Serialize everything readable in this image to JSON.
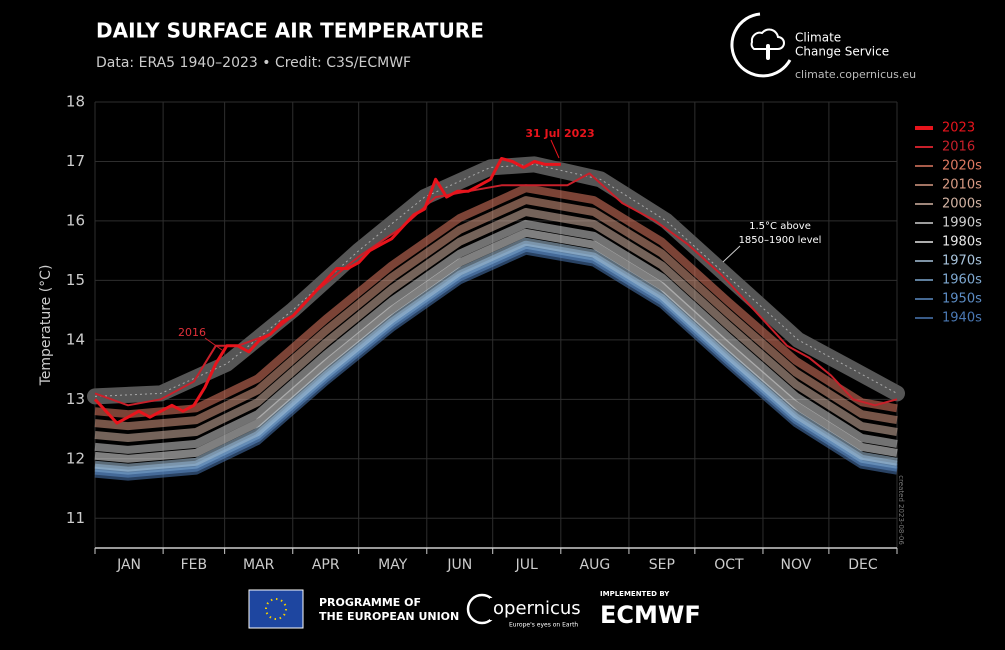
{
  "header": {
    "title": "DAILY SURFACE AIR TEMPERATURE",
    "subtitle": "Data: ERA5 1940–2023 • Credit: C3S/ECMWF",
    "logo_line1": "Climate",
    "logo_line2": "Change Service",
    "url": "climate.copernicus.eu"
  },
  "chart_data": {
    "type": "line",
    "ylabel": "Temperature (°C)",
    "xlim": [
      0,
      365
    ],
    "ylim": [
      10.5,
      18
    ],
    "yticks": [
      11,
      12,
      13,
      14,
      15,
      16,
      17,
      18
    ],
    "xticks": [
      {
        "value": 15.5,
        "label": "JAN"
      },
      {
        "value": 45,
        "label": "FEB"
      },
      {
        "value": 74.5,
        "label": "MAR"
      },
      {
        "value": 105,
        "label": "APR"
      },
      {
        "value": 135.5,
        "label": "MAY"
      },
      {
        "value": 166,
        "label": "JUN"
      },
      {
        "value": 196.5,
        "label": "JUL"
      },
      {
        "value": 227.5,
        "label": "AUG"
      },
      {
        "value": 258,
        "label": "SEP"
      },
      {
        "value": 288.5,
        "label": "OCT"
      },
      {
        "value": 319,
        "label": "NOV"
      },
      {
        "value": 349.5,
        "label": "DEC"
      }
    ],
    "xgrid": [
      0,
      31,
      59,
      90,
      120,
      151,
      181,
      212,
      243,
      273,
      304,
      334,
      365
    ],
    "grid": true,
    "reference": {
      "label1": "1.5°C above",
      "label2": "1850–1900 level",
      "color": "#555555",
      "x": [
        0,
        30,
        60,
        90,
        120,
        150,
        180,
        200,
        230,
        260,
        290,
        320,
        345,
        365
      ],
      "values": [
        13.05,
        13.1,
        13.6,
        14.5,
        15.5,
        16.4,
        16.9,
        16.95,
        16.7,
        16.0,
        15.0,
        14.0,
        13.5,
        13.1
      ]
    },
    "series": [
      {
        "name": "2023",
        "color": "#e8141c",
        "x": [
          0,
          5,
          10,
          15,
          20,
          25,
          30,
          35,
          40,
          45,
          50,
          55,
          60,
          65,
          70,
          75,
          80,
          85,
          90,
          95,
          100,
          105,
          110,
          115,
          120,
          125,
          130,
          135,
          140,
          145,
          150,
          155,
          160,
          165,
          170,
          175,
          180,
          185,
          190,
          195,
          200,
          205,
          212
        ],
        "values": [
          13.0,
          12.8,
          12.6,
          12.7,
          12.8,
          12.7,
          12.8,
          12.9,
          12.8,
          12.9,
          13.2,
          13.6,
          13.9,
          13.9,
          13.8,
          14.0,
          14.1,
          14.3,
          14.4,
          14.6,
          14.8,
          15.0,
          15.2,
          15.2,
          15.3,
          15.5,
          15.6,
          15.7,
          15.9,
          16.1,
          16.2,
          16.7,
          16.4,
          16.5,
          16.5,
          16.6,
          16.7,
          17.05,
          17.0,
          16.9,
          17.0,
          16.95,
          16.95
        ]
      },
      {
        "name": "2016",
        "color": "#c8202a",
        "x": [
          0,
          15,
          30,
          45,
          55,
          65,
          80,
          90,
          100,
          120,
          140,
          155,
          170,
          185,
          200,
          215,
          225,
          240,
          255,
          270,
          285,
          300,
          315,
          325,
          335,
          345,
          355,
          365
        ],
        "values": [
          13.1,
          12.9,
          13.0,
          13.3,
          13.9,
          13.9,
          14.1,
          14.4,
          14.8,
          15.4,
          15.9,
          16.4,
          16.5,
          16.6,
          16.6,
          16.6,
          16.8,
          16.3,
          16.0,
          15.6,
          15.1,
          14.5,
          13.9,
          13.7,
          13.4,
          13.0,
          12.9,
          13.0
        ]
      },
      {
        "name": "2020s",
        "color": "#e07a62",
        "x": [
          0,
          15,
          46,
          74,
          105,
          135,
          166,
          196,
          227,
          258,
          288,
          319,
          349,
          365
        ],
        "values": [
          12.8,
          12.75,
          12.85,
          13.35,
          14.35,
          15.25,
          16.05,
          16.55,
          16.35,
          15.65,
          14.65,
          13.65,
          12.95,
          12.85
        ]
      },
      {
        "name": "2010s",
        "color": "#d89a84",
        "x": [
          0,
          15,
          46,
          74,
          105,
          135,
          166,
          196,
          227,
          258,
          288,
          319,
          349,
          365
        ],
        "values": [
          12.6,
          12.55,
          12.65,
          13.15,
          14.15,
          15.05,
          15.85,
          16.35,
          16.15,
          15.45,
          14.45,
          13.45,
          12.75,
          12.65
        ]
      },
      {
        "name": "2000s",
        "color": "#d4b4a4",
        "x": [
          0,
          15,
          46,
          74,
          105,
          135,
          166,
          196,
          227,
          258,
          288,
          319,
          349,
          365
        ],
        "values": [
          12.4,
          12.35,
          12.45,
          12.95,
          13.95,
          14.85,
          15.65,
          16.15,
          15.95,
          15.25,
          14.25,
          13.25,
          12.55,
          12.45
        ]
      },
      {
        "name": "1990s",
        "color": "#cfcfcf",
        "x": [
          0,
          15,
          46,
          74,
          105,
          135,
          166,
          196,
          227,
          258,
          288,
          319,
          349,
          365
        ],
        "values": [
          12.2,
          12.15,
          12.25,
          12.75,
          13.75,
          14.65,
          15.45,
          15.95,
          15.75,
          15.05,
          14.05,
          13.05,
          12.35,
          12.25
        ]
      },
      {
        "name": "1980s",
        "color": "#e8e8e8",
        "x": [
          0,
          15,
          46,
          74,
          105,
          135,
          166,
          196,
          227,
          258,
          288,
          319,
          349,
          365
        ],
        "values": [
          12.05,
          12.0,
          12.1,
          12.6,
          13.6,
          14.5,
          15.3,
          15.8,
          15.6,
          14.9,
          13.9,
          12.9,
          12.2,
          12.1
        ]
      },
      {
        "name": "1970s",
        "color": "#a8c4dc",
        "x": [
          0,
          15,
          46,
          74,
          105,
          135,
          166,
          196,
          227,
          258,
          288,
          319,
          349,
          365
        ],
        "values": [
          11.9,
          11.85,
          11.95,
          12.45,
          13.45,
          14.35,
          15.15,
          15.65,
          15.45,
          14.75,
          13.75,
          12.75,
          12.05,
          11.95
        ]
      },
      {
        "name": "1960s",
        "color": "#7ea8d0",
        "x": [
          0,
          15,
          46,
          74,
          105,
          135,
          166,
          196,
          227,
          258,
          288,
          319,
          349,
          365
        ],
        "values": [
          11.85,
          11.8,
          11.9,
          12.4,
          13.4,
          14.3,
          15.1,
          15.6,
          15.4,
          14.7,
          13.7,
          12.7,
          12.0,
          11.9
        ]
      },
      {
        "name": "1950s",
        "color": "#5c8cc4",
        "x": [
          0,
          15,
          46,
          74,
          105,
          135,
          166,
          196,
          227,
          258,
          288,
          319,
          349,
          365
        ],
        "values": [
          11.8,
          11.75,
          11.85,
          12.35,
          13.35,
          14.25,
          15.05,
          15.55,
          15.35,
          14.65,
          13.65,
          12.65,
          11.95,
          11.85
        ]
      },
      {
        "name": "1940s",
        "color": "#4a78b4",
        "x": [
          0,
          15,
          46,
          74,
          105,
          135,
          166,
          196,
          227,
          258,
          288,
          319,
          349,
          365
        ],
        "values": [
          11.75,
          11.7,
          11.8,
          12.3,
          13.3,
          14.2,
          15.0,
          15.5,
          15.3,
          14.6,
          13.6,
          12.6,
          11.9,
          11.8
        ]
      }
    ],
    "annotations": [
      "31 Jul 2023",
      "2016"
    ],
    "created": "created 2023-08-06"
  },
  "footer": {
    "eu1": "PROGRAMME OF",
    "eu2": "THE EUROPEAN UNION",
    "copernicus": "opernicus",
    "copernicus_tag": "Europe's eyes on Earth",
    "implemented": "IMPLEMENTED BY",
    "ecmwf": "ECMWF"
  }
}
